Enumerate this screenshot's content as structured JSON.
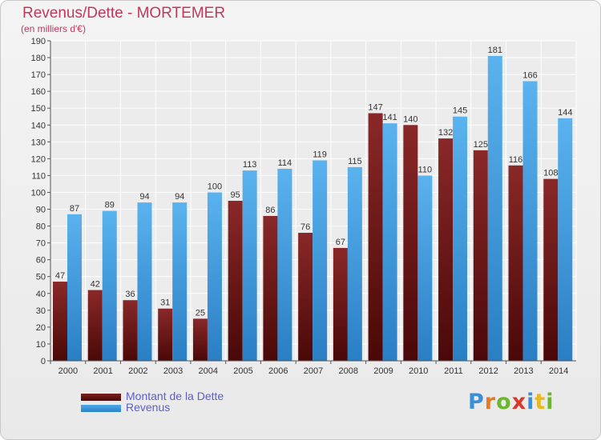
{
  "chart_data": {
    "type": "bar",
    "title": "Revenus/Dette - MORTEMER",
    "subtitle": "(en milliers d'€)",
    "categories": [
      "2000",
      "2001",
      "2002",
      "2003",
      "2004",
      "2005",
      "2006",
      "2007",
      "2008",
      "2009",
      "2010",
      "2011",
      "2012",
      "2013",
      "2014"
    ],
    "series": [
      {
        "name": "Montant de la Dette",
        "color": "#6e1a1a",
        "values": [
          47,
          42,
          36,
          31,
          25,
          95,
          86,
          76,
          67,
          147,
          140,
          132,
          125,
          116,
          108
        ]
      },
      {
        "name": "Revenus",
        "color": "#3b98dd",
        "values": [
          87,
          89,
          94,
          94,
          100,
          113,
          114,
          119,
          115,
          141,
          110,
          145,
          181,
          166,
          144
        ]
      }
    ],
    "ylim": [
      0,
      190
    ],
    "ytick_step": 10,
    "grid": true,
    "legend": "bottom-left"
  },
  "legend": {
    "debt_label": "Montant de la Dette",
    "revenue_label": "Revenus"
  },
  "logo": {
    "text": "Proxiti"
  }
}
